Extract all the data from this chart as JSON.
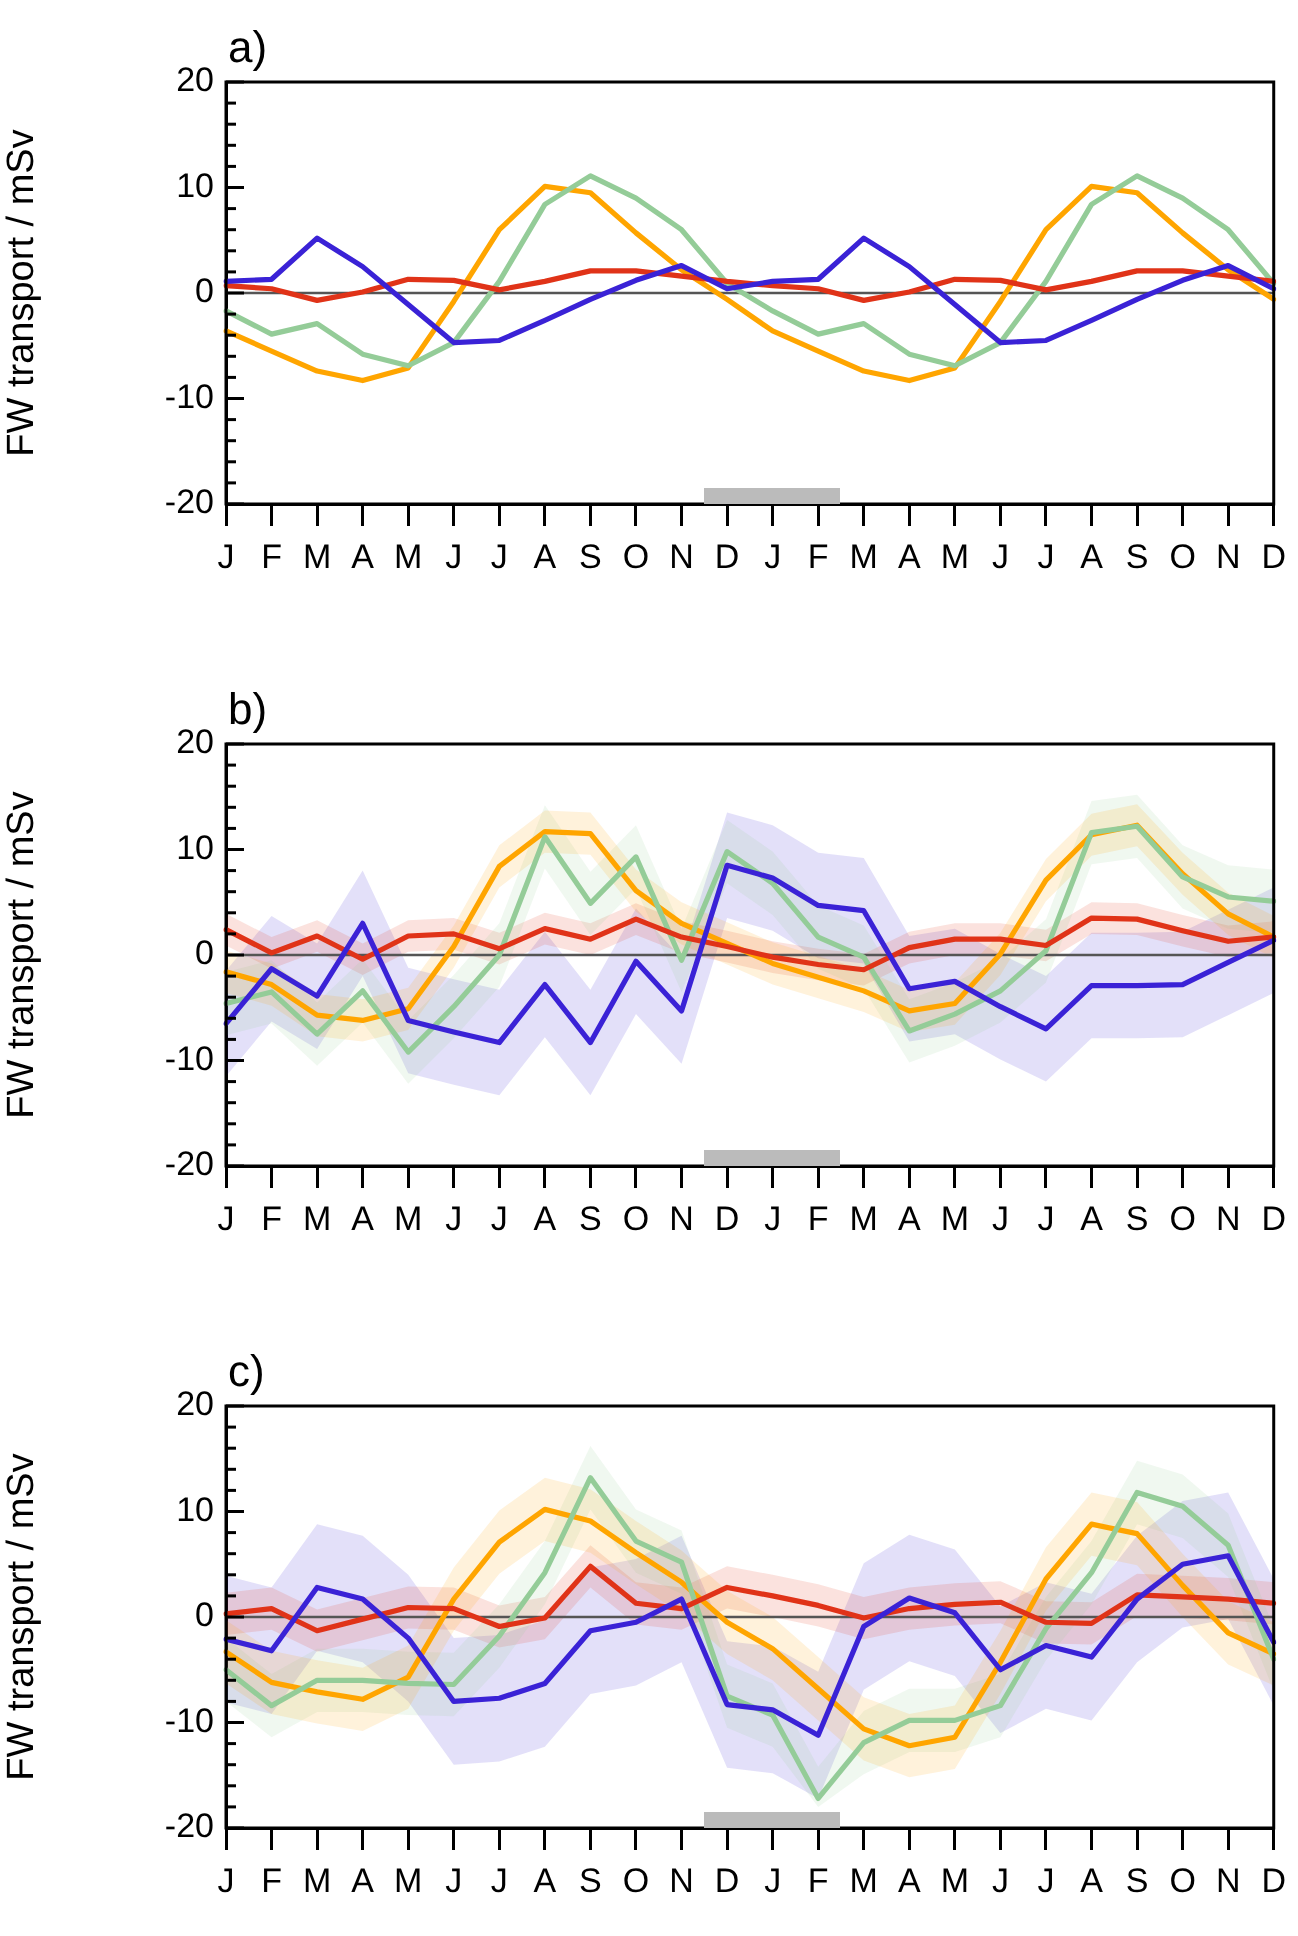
{
  "chart_data": [
    {
      "type": "line",
      "title": "a)",
      "ylabel": "FW transport / mSv",
      "categories": [
        "J",
        "F",
        "M",
        "A",
        "M",
        "J",
        "J",
        "A",
        "S",
        "O",
        "N",
        "D",
        "J",
        "F",
        "M",
        "A",
        "M",
        "J",
        "J",
        "A",
        "S",
        "O",
        "N",
        "D"
      ],
      "ylim": [
        -20,
        20
      ],
      "yticks": [
        -20,
        {
          "value": -18,
          "label": null
        },
        {
          "value": -16,
          "label": null
        },
        {
          "value": -14,
          "label": null
        },
        {
          "value": -12,
          "label": null
        },
        -10,
        {
          "value": -8,
          "label": null
        },
        {
          "value": -6,
          "label": null
        },
        {
          "value": -4,
          "label": null
        },
        {
          "value": -2,
          "label": null
        },
        0,
        {
          "value": 2,
          "label": null
        },
        {
          "value": 4,
          "label": null
        },
        {
          "value": 6,
          "label": null
        },
        {
          "value": 8,
          "label": null
        },
        10,
        {
          "value": 12,
          "label": null
        },
        {
          "value": 14,
          "label": null
        },
        {
          "value": 16,
          "label": null
        },
        {
          "value": 18,
          "label": null
        },
        20
      ],
      "ref_lines": [
        {
          "axis": "y",
          "value": 0,
          "color": "#555555"
        }
      ],
      "series": [
        {
          "color": "#3a22d6",
          "values": [
            1.1,
            1.3,
            5.2,
            2.5,
            -1.1,
            -4.7,
            -4.5,
            -2.6,
            -0.6,
            1.2,
            2.6,
            0.4,
            1.1,
            1.3,
            5.2,
            2.5,
            -1.1,
            -4.7,
            -4.5,
            -2.6,
            -0.6,
            1.2,
            2.6,
            0.4
          ]
        },
        {
          "color": "#e03318",
          "values": [
            0.7,
            0.4,
            -0.7,
            0.1,
            1.3,
            1.2,
            0.3,
            1.1,
            2.1,
            2.1,
            1.6,
            1.1,
            0.7,
            0.4,
            -0.7,
            0.1,
            1.3,
            1.2,
            0.3,
            1.1,
            2.1,
            2.1,
            1.6,
            1.1
          ]
        },
        {
          "color": "#94cc98",
          "values": [
            -1.7,
            -3.9,
            -2.9,
            -5.8,
            -6.9,
            -4.7,
            1.1,
            8.4,
            11.1,
            9.0,
            6.0,
            0.9,
            -1.7,
            -3.9,
            -2.9,
            -5.8,
            -6.9,
            -4.7,
            1.1,
            8.4,
            11.1,
            9.0,
            6.0,
            0.9
          ]
        },
        {
          "color": "#ffa500",
          "values": [
            -3.6,
            -5.5,
            -7.4,
            -8.3,
            -7.1,
            -0.8,
            6.0,
            10.1,
            9.5,
            5.7,
            2.2,
            -0.6,
            -3.6,
            -5.5,
            -7.4,
            -8.3,
            -7.1,
            -0.8,
            6.0,
            10.1,
            9.5,
            5.7,
            2.2,
            -0.6
          ]
        }
      ]
    },
    {
      "type": "line",
      "title": "b)",
      "ylabel": "FW transport / mSv",
      "categories": [
        "J",
        "F",
        "M",
        "A",
        "M",
        "J",
        "J",
        "A",
        "S",
        "O",
        "N",
        "D",
        "J",
        "F",
        "M",
        "A",
        "M",
        "J",
        "J",
        "A",
        "S",
        "O",
        "N",
        "D"
      ],
      "ylim": [
        -20,
        20
      ],
      "yticks": [
        -20,
        {
          "value": -18,
          "label": null
        },
        {
          "value": -16,
          "label": null
        },
        {
          "value": -14,
          "label": null
        },
        {
          "value": -12,
          "label": null
        },
        -10,
        {
          "value": -8,
          "label": null
        },
        {
          "value": -6,
          "label": null
        },
        {
          "value": -4,
          "label": null
        },
        {
          "value": -2,
          "label": null
        },
        0,
        {
          "value": 2,
          "label": null
        },
        {
          "value": 4,
          "label": null
        },
        {
          "value": 6,
          "label": null
        },
        {
          "value": 8,
          "label": null
        },
        10,
        {
          "value": 12,
          "label": null
        },
        {
          "value": 14,
          "label": null
        },
        {
          "value": 16,
          "label": null
        },
        {
          "value": 18,
          "label": null
        },
        20
      ],
      "ref_lines": [
        {
          "axis": "y",
          "value": 0,
          "color": "#555555"
        }
      ],
      "series": [
        {
          "color": "#3a22d6",
          "values": [
            -6.5,
            -1.3,
            -3.9,
            3.0,
            -6.2,
            -7.3,
            -8.3,
            -2.8,
            -8.3,
            -0.6,
            -5.3,
            8.5,
            7.3,
            4.7,
            4.2,
            -3.2,
            -2.5,
            -4.9,
            -7.0,
            -2.9,
            -2.9,
            -2.8,
            -0.7,
            1.4
          ],
          "lower": [
            -11.5,
            -6.3,
            -8.9,
            -2.0,
            -11.2,
            -12.3,
            -13.3,
            -7.8,
            -13.3,
            -5.6,
            -10.3,
            3.5,
            2.3,
            -0.3,
            -0.8,
            -8.2,
            -7.5,
            -9.9,
            -12.0,
            -7.9,
            -7.9,
            -7.8,
            -5.7,
            -3.6
          ],
          "upper": [
            -1.5,
            3.7,
            1.1,
            8.0,
            -1.2,
            -2.3,
            -3.3,
            2.2,
            -3.3,
            4.4,
            -0.3,
            13.5,
            12.3,
            9.7,
            9.2,
            1.8,
            2.5,
            0.1,
            -2.0,
            2.1,
            2.1,
            2.2,
            4.3,
            6.4
          ]
        },
        {
          "color": "#e03318",
          "values": [
            2.4,
            0.2,
            1.8,
            -0.4,
            1.8,
            2.0,
            0.6,
            2.5,
            1.5,
            3.4,
            1.7,
            0.8,
            -0.2,
            -0.9,
            -1.4,
            0.7,
            1.5,
            1.5,
            0.9,
            3.5,
            3.4,
            2.3,
            1.3,
            1.7
          ],
          "lower": [
            0.9,
            -1.3,
            0.3,
            -1.9,
            0.3,
            0.5,
            -0.9,
            1.0,
            0.0,
            1.9,
            0.2,
            -0.7,
            -1.7,
            -2.4,
            -2.9,
            -0.8,
            0.0,
            0.0,
            -0.6,
            2.0,
            1.9,
            0.8,
            -0.2,
            0.2
          ],
          "upper": [
            3.9,
            1.7,
            3.3,
            1.1,
            3.3,
            3.5,
            2.1,
            4.0,
            3.0,
            4.9,
            3.2,
            2.3,
            1.3,
            0.6,
            0.1,
            2.2,
            3.0,
            3.0,
            2.4,
            5.0,
            4.9,
            3.8,
            2.8,
            3.2
          ]
        },
        {
          "color": "#94cc98",
          "values": [
            -4.6,
            -3.5,
            -7.5,
            -3.4,
            -9.2,
            -4.9,
            0,
            11.2,
            4.9,
            9.3,
            -0.5,
            9.8,
            6.8,
            1.7,
            -0.2,
            -7.2,
            -5.6,
            -3.4,
            0.4,
            11.6,
            12.2,
            7.4,
            5.5,
            5.1
          ],
          "lower": [
            -7.6,
            -6.5,
            -10.5,
            -6.4,
            -12.2,
            -7.9,
            -3,
            8.2,
            1.9,
            6.3,
            -3.5,
            6.8,
            3.8,
            -1.3,
            -3.2,
            -10.2,
            -8.6,
            -6.4,
            -2.6,
            8.6,
            9.2,
            4.4,
            2.5,
            2.1
          ],
          "upper": [
            -1.6,
            -0.5,
            -4.5,
            -0.4,
            -6.2,
            -1.9,
            3,
            14.2,
            7.9,
            12.3,
            2.5,
            12.8,
            9.8,
            4.7,
            2.8,
            -4.2,
            -2.6,
            -0.4,
            3.4,
            14.6,
            15.2,
            10.4,
            8.5,
            8.1
          ]
        },
        {
          "color": "#ffa500",
          "values": [
            -1.6,
            -2.8,
            -5.7,
            -6.2,
            -5.1,
            0.8,
            8.4,
            11.7,
            11.5,
            6.1,
            3.0,
            1.1,
            -0.8,
            -2.1,
            -3.4,
            -5.3,
            -4.6,
            0.1,
            7.1,
            11.4,
            12.3,
            7.7,
            3.9,
            1.7
          ],
          "lower": [
            -3.6,
            -4.8,
            -7.7,
            -8.2,
            -7.1,
            -1.2,
            6.4,
            9.7,
            9.5,
            4.1,
            1.0,
            -0.9,
            -2.8,
            -4.1,
            -5.4,
            -7.3,
            -6.6,
            -1.9,
            5.1,
            9.4,
            10.3,
            5.7,
            1.9,
            -0.3
          ],
          "upper": [
            0.4,
            -0.8,
            -3.7,
            -4.2,
            -3.1,
            2.8,
            10.4,
            13.7,
            13.5,
            8.1,
            5.0,
            3.1,
            1.2,
            -0.1,
            -1.4,
            -3.3,
            -2.6,
            2.1,
            9.1,
            13.4,
            14.3,
            9.7,
            5.9,
            3.7
          ]
        }
      ]
    },
    {
      "type": "line",
      "title": "c)",
      "ylabel": "FW transport / mSv",
      "categories": [
        "J",
        "F",
        "M",
        "A",
        "M",
        "J",
        "J",
        "A",
        "S",
        "O",
        "N",
        "D",
        "J",
        "F",
        "M",
        "A",
        "M",
        "J",
        "J",
        "A",
        "S",
        "O",
        "N",
        "D"
      ],
      "ylim": [
        -20,
        20
      ],
      "yticks": [
        -20,
        {
          "value": -18,
          "label": null
        },
        {
          "value": -16,
          "label": null
        },
        {
          "value": -14,
          "label": null
        },
        {
          "value": -12,
          "label": null
        },
        -10,
        {
          "value": -8,
          "label": null
        },
        {
          "value": -6,
          "label": null
        },
        {
          "value": -4,
          "label": null
        },
        {
          "value": -2,
          "label": null
        },
        0,
        {
          "value": 2,
          "label": null
        },
        {
          "value": 4,
          "label": null
        },
        {
          "value": 6,
          "label": null
        },
        {
          "value": 8,
          "label": null
        },
        10,
        {
          "value": 12,
          "label": null
        },
        {
          "value": 14,
          "label": null
        },
        {
          "value": 16,
          "label": null
        },
        {
          "value": 18,
          "label": null
        },
        20
      ],
      "ref_lines": [
        {
          "axis": "y",
          "value": 0,
          "color": "#555555"
        }
      ],
      "series": [
        {
          "color": "#3a22d6",
          "values": [
            -2.1,
            -3.2,
            2.8,
            1.7,
            -2.0,
            -8.0,
            -7.7,
            -6.3,
            -1.3,
            -0.5,
            1.7,
            -8.3,
            -8.8,
            -11.2,
            -0.9,
            1.8,
            0.4,
            -5.0,
            -2.7,
            -3.8,
            1.7,
            5.0,
            5.8,
            -2.4
          ],
          "lower": [
            -8.1,
            -9.2,
            -3.2,
            -4.3,
            -8.0,
            -14.0,
            -13.7,
            -12.3,
            -7.3,
            -6.5,
            -4.3,
            -14.3,
            -14.8,
            -17.2,
            -6.9,
            -4.2,
            -5.6,
            -11.0,
            -8.7,
            -9.8,
            -4.3,
            -1.0,
            -0.2,
            -8.4
          ],
          "upper": [
            3.9,
            2.8,
            8.8,
            7.7,
            4.0,
            -2.0,
            -1.7,
            -0.3,
            4.7,
            5.5,
            7.7,
            -2.3,
            -2.8,
            -5.2,
            5.1,
            7.8,
            6.4,
            1.0,
            3.3,
            2.2,
            7.7,
            11.0,
            11.8,
            3.6
          ]
        },
        {
          "color": "#e03318",
          "values": [
            0.3,
            0.8,
            -1.3,
            -0.2,
            0.9,
            0.8,
            -0.9,
            -0.1,
            4.8,
            1.3,
            0.8,
            2.8,
            2.0,
            1.1,
            -0.1,
            0.8,
            1.2,
            1.4,
            -0.5,
            -0.6,
            2.1,
            1.9,
            1.7,
            1.3
          ],
          "lower": [
            -1.7,
            -1.2,
            -3.3,
            -2.2,
            -1.1,
            -1.2,
            -2.9,
            -2.1,
            2.8,
            -0.7,
            -1.2,
            0.8,
            0.0,
            -0.9,
            -2.1,
            -1.2,
            -0.8,
            -0.6,
            -2.5,
            -2.6,
            0.1,
            -0.1,
            -0.3,
            -0.7
          ],
          "upper": [
            2.3,
            2.8,
            0.7,
            1.8,
            2.9,
            2.8,
            1.1,
            1.9,
            6.8,
            3.3,
            2.8,
            4.8,
            4.0,
            3.1,
            1.9,
            2.8,
            3.2,
            3.4,
            1.5,
            1.4,
            4.1,
            3.9,
            3.7,
            3.3
          ]
        },
        {
          "color": "#94cc98",
          "values": [
            -5.0,
            -8.4,
            -6.0,
            -6.0,
            -6.3,
            -6.4,
            -1.8,
            4.2,
            13.2,
            7.2,
            5.2,
            -7.5,
            -9.3,
            -17.2,
            -11.9,
            -9.8,
            -9.8,
            -8.4,
            -1.1,
            4.2,
            11.8,
            10.5,
            6.8,
            -4.0
          ],
          "lower": [
            -8.0,
            -11.4,
            -9.0,
            -9.0,
            -9.3,
            -9.4,
            -4.8,
            1.2,
            10.2,
            4.2,
            2.2,
            -10.5,
            -12.3,
            -18.0,
            -14.9,
            -12.8,
            -12.8,
            -11.4,
            -4.1,
            1.2,
            8.8,
            7.5,
            3.8,
            -7.0
          ],
          "upper": [
            -2.0,
            -5.4,
            -3.0,
            -3.0,
            -3.3,
            -3.4,
            1.2,
            7.2,
            16.2,
            10.2,
            8.2,
            -4.5,
            -6.3,
            -14.2,
            -8.9,
            -6.8,
            -6.8,
            -5.4,
            1.9,
            7.2,
            14.8,
            13.5,
            9.8,
            -1.0
          ]
        },
        {
          "color": "#ffa500",
          "values": [
            -3.3,
            -6.2,
            -7.1,
            -7.8,
            -5.7,
            1.7,
            7.1,
            10.2,
            9.1,
            6.1,
            3.3,
            -0.5,
            -3.0,
            -6.8,
            -10.6,
            -12.2,
            -11.4,
            -4.3,
            3.6,
            8.8,
            7.9,
            3.0,
            -1.5,
            -3.5
          ],
          "lower": [
            -6.3,
            -9.2,
            -10.1,
            -10.8,
            -8.7,
            -1.3,
            4.1,
            7.2,
            6.1,
            3.1,
            0.3,
            -3.5,
            -6.0,
            -9.8,
            -13.6,
            -15.2,
            -14.4,
            -7.3,
            0.6,
            5.8,
            4.9,
            0.0,
            -4.5,
            -6.5
          ],
          "upper": [
            -0.3,
            -3.2,
            -4.1,
            -4.8,
            -2.7,
            4.7,
            10.1,
            13.2,
            12.1,
            9.1,
            6.3,
            2.5,
            0.0,
            -3.8,
            -7.6,
            -9.2,
            -8.4,
            -1.3,
            6.6,
            11.8,
            10.9,
            6.0,
            1.5,
            -0.5
          ]
        }
      ]
    }
  ]
}
